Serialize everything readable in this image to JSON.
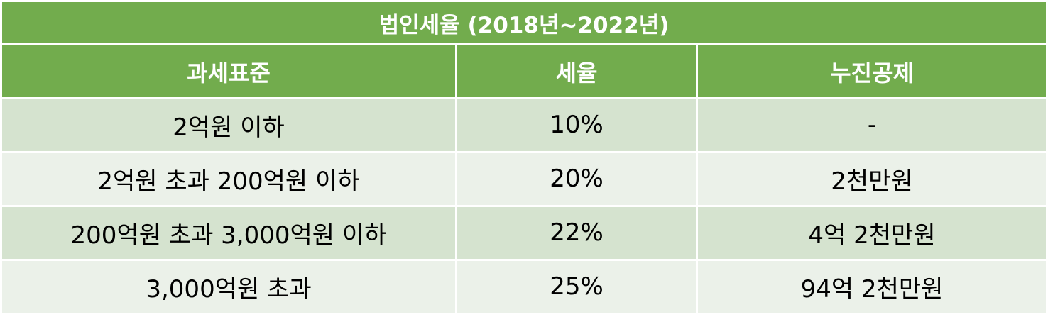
{
  "table": {
    "title": "법인세율 (2018년~2022년)",
    "headers": [
      "과세표준",
      "세율",
      "누진공제"
    ],
    "rows": [
      [
        "2억원 이하",
        "10%",
        "-"
      ],
      [
        "2억원 초과 200억원 이하",
        "20%",
        "2천만원"
      ],
      [
        "200억원 초과 3,000억원 이하",
        "22%",
        "4억 2천만원"
      ],
      [
        "3,000억원 초과",
        "25%",
        "94억 2천만원"
      ]
    ]
  },
  "colors": {
    "header_green": "#72ac4d",
    "row_dark": "#d5e3cf",
    "row_light": "#ebf1e9",
    "header_text": "#ffffff"
  }
}
